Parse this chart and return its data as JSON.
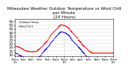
{
  "title": "Milwaukee Weather Outdoor Temperature vs Wind Chill\nper Minute\n(24 Hours)",
  "title_fontsize": 4.2,
  "legend_labels": [
    "Outdoor Temp",
    "Wind Chill"
  ],
  "legend_colors": [
    "red",
    "blue"
  ],
  "background_color": "#ffffff",
  "grid_color": "#cccccc",
  "ymin": 8,
  "ymax": 58,
  "yticks": [
    10,
    15,
    20,
    25,
    30,
    35,
    40,
    45,
    50,
    55
  ],
  "ytick_fontsize": 3.5,
  "xtick_fontsize": 2.8,
  "marker_size": 0.8,
  "temp_x": [
    0,
    5,
    10,
    15,
    20,
    25,
    30,
    35,
    40,
    45,
    50,
    55,
    60,
    65,
    70,
    75,
    80,
    85,
    90,
    95,
    100,
    105,
    110,
    115,
    120,
    125,
    130,
    135,
    140,
    145,
    150,
    155,
    160,
    165,
    170,
    175,
    180,
    185,
    190,
    195,
    200,
    205,
    210,
    215,
    220,
    225,
    230,
    235,
    240,
    245,
    250,
    255,
    260,
    265,
    270,
    275,
    280,
    285,
    290,
    295,
    300,
    305,
    310,
    315,
    320,
    325,
    330,
    335,
    340,
    345,
    350,
    355,
    360,
    365,
    370,
    375,
    380,
    385,
    390,
    395,
    400,
    405,
    410,
    415,
    420,
    425,
    430,
    435,
    440,
    445,
    450,
    455,
    460,
    465,
    470,
    475,
    480,
    485,
    490,
    495,
    500,
    505,
    510,
    515,
    520,
    525,
    530,
    535,
    540,
    545,
    550,
    555,
    560,
    565,
    570,
    575,
    580,
    585,
    590,
    595,
    600,
    605,
    610,
    615,
    620,
    625,
    630,
    635,
    640,
    645,
    650,
    655,
    660,
    665,
    670,
    675,
    680,
    685,
    690,
    695,
    700,
    705,
    710,
    715,
    720,
    725,
    730,
    735,
    740,
    745,
    750,
    755,
    760,
    765,
    770,
    775,
    780,
    785,
    790,
    795,
    800,
    805,
    810,
    815,
    820,
    825,
    830,
    835,
    840,
    845,
    850,
    855,
    860,
    865,
    870,
    875,
    880,
    885,
    890,
    895,
    900,
    905,
    910,
    915,
    920,
    925,
    930,
    935,
    940,
    945,
    950,
    955,
    960,
    965,
    970,
    975,
    980,
    985,
    990,
    995,
    1000,
    1005,
    1010,
    1015,
    1020,
    1025,
    1030,
    1035,
    1040,
    1045,
    1050,
    1055,
    1060,
    1065,
    1070,
    1075,
    1080,
    1085,
    1090,
    1095,
    1100,
    1105,
    1110,
    1115,
    1120,
    1125,
    1130,
    1135,
    1140,
    1145,
    1150,
    1155,
    1160,
    1165,
    1170,
    1175,
    1180,
    1185,
    1190,
    1195,
    1200,
    1205,
    1210,
    1215,
    1220,
    1225,
    1230,
    1235,
    1240,
    1245,
    1250,
    1255,
    1260,
    1265,
    1270,
    1275,
    1280,
    1285,
    1290,
    1295,
    1300,
    1305,
    1310,
    1315,
    1320,
    1325,
    1330,
    1335,
    1340,
    1345,
    1350,
    1355,
    1360,
    1365,
    1370,
    1375,
    1380,
    1385,
    1390,
    1395,
    1400,
    1405,
    1410,
    1415,
    1420,
    1425,
    1430,
    1435
  ],
  "temp_y": [
    22,
    22,
    22,
    21,
    21,
    21,
    21,
    21,
    21,
    21,
    20,
    20,
    20,
    20,
    20,
    19,
    19,
    19,
    19,
    18,
    18,
    18,
    17,
    17,
    17,
    17,
    16,
    16,
    16,
    16,
    15,
    15,
    15,
    15,
    15,
    15,
    15,
    14,
    14,
    14,
    14,
    14,
    14,
    14,
    14,
    14,
    14,
    14,
    13,
    13,
    14,
    14,
    14,
    14,
    14,
    14,
    14,
    14,
    14,
    14,
    14,
    14,
    14,
    15,
    15,
    15,
    16,
    16,
    17,
    17,
    18,
    18,
    18,
    19,
    19,
    20,
    20,
    21,
    21,
    22,
    22,
    23,
    23,
    24,
    25,
    25,
    26,
    26,
    27,
    27,
    28,
    28,
    29,
    29,
    30,
    30,
    31,
    31,
    32,
    32,
    33,
    34,
    35,
    36,
    37,
    37,
    38,
    38,
    39,
    39,
    40,
    40,
    41,
    41,
    42,
    42,
    43,
    43,
    44,
    44,
    45,
    45,
    46,
    46,
    47,
    47,
    48,
    48,
    49,
    49,
    50,
    50,
    51,
    51,
    51,
    51,
    51,
    51,
    51,
    51,
    51,
    50,
    50,
    50,
    50,
    50,
    50,
    49,
    49,
    49,
    48,
    48,
    48,
    47,
    47,
    47,
    46,
    46,
    45,
    44,
    44,
    43,
    43,
    42,
    42,
    41,
    41,
    40,
    39,
    39,
    38,
    38,
    37,
    37,
    36,
    36,
    35,
    35,
    34,
    34,
    33,
    33,
    32,
    32,
    31,
    30,
    30,
    29,
    29,
    28,
    28,
    27,
    27,
    26,
    25,
    25,
    24,
    24,
    23,
    23,
    22,
    22,
    21,
    21,
    21,
    20,
    20,
    19,
    19,
    18,
    18,
    17,
    17,
    16,
    16,
    15,
    15,
    14,
    14,
    14,
    13,
    13,
    13,
    13,
    12,
    12,
    12,
    12,
    12,
    12,
    12,
    12,
    12,
    12,
    12,
    12,
    12,
    12,
    12,
    12,
    12,
    12,
    12,
    12,
    12,
    12,
    12,
    12,
    12,
    12,
    12,
    12,
    12,
    12,
    12,
    12,
    12,
    12,
    12,
    12,
    12,
    12,
    12,
    12,
    12,
    12,
    12,
    12,
    12,
    12,
    12,
    12,
    12,
    12,
    12,
    12,
    12,
    12,
    12,
    12,
    12,
    12,
    12,
    12,
    12,
    12,
    12,
    12
  ],
  "chill_x": [
    0,
    5,
    10,
    15,
    20,
    25,
    30,
    35,
    40,
    45,
    50,
    55,
    60,
    65,
    70,
    75,
    80,
    85,
    90,
    95,
    100,
    105,
    110,
    115,
    120,
    125,
    130,
    135,
    140,
    145,
    150,
    155,
    160,
    165,
    170,
    175,
    180,
    185,
    190,
    195,
    200,
    205,
    210,
    215,
    220,
    225,
    230,
    235,
    240,
    245,
    250,
    255,
    260,
    265,
    270,
    275,
    280,
    285,
    290,
    295,
    300,
    305,
    310,
    315,
    320,
    325,
    330,
    335,
    340,
    345,
    350,
    355,
    360,
    365,
    370,
    375,
    380,
    385,
    390,
    395,
    400,
    405,
    410,
    415,
    420,
    425,
    430,
    435,
    440,
    445,
    450,
    455,
    460,
    465,
    470,
    475,
    480,
    485,
    490,
    495,
    500,
    505,
    510,
    515,
    520,
    525,
    530,
    535,
    540,
    545,
    550,
    555,
    560,
    565,
    570,
    575,
    580,
    585,
    590,
    595,
    600,
    605,
    610,
    615,
    620,
    625,
    630,
    635,
    640,
    645,
    650,
    655,
    660,
    665,
    670,
    675,
    680,
    685,
    690,
    695,
    700,
    705,
    710,
    715,
    720,
    725,
    730,
    735,
    740,
    745,
    750,
    755,
    760,
    765,
    770,
    775,
    780,
    785,
    790,
    795,
    800,
    805,
    810,
    815,
    820,
    825,
    830,
    835,
    840,
    845,
    850,
    855,
    860,
    865,
    870,
    875,
    880,
    885,
    890,
    895,
    900,
    905,
    910,
    915,
    920,
    925,
    930,
    935,
    940,
    945,
    950,
    955,
    960,
    965,
    970,
    975,
    980,
    985,
    990,
    995,
    1000,
    1005,
    1010,
    1015,
    1020,
    1025,
    1030,
    1035,
    1040,
    1045,
    1050,
    1055,
    1060,
    1065,
    1070,
    1075,
    1080,
    1085,
    1090,
    1095,
    1100,
    1105,
    1110,
    1115,
    1120,
    1125,
    1130,
    1135,
    1140,
    1145,
    1150,
    1155,
    1160,
    1165,
    1170,
    1175,
    1180,
    1185,
    1190,
    1195,
    1200,
    1205,
    1210,
    1215,
    1220,
    1225,
    1230,
    1235,
    1240,
    1245,
    1250,
    1255,
    1260,
    1265,
    1270,
    1275,
    1280,
    1285,
    1290,
    1295,
    1300,
    1305,
    1310,
    1315,
    1320,
    1325,
    1330,
    1335,
    1340,
    1345,
    1350,
    1355,
    1360,
    1365,
    1370,
    1375,
    1380,
    1385,
    1390,
    1395,
    1400,
    1405,
    1410,
    1415,
    1420,
    1425,
    1430,
    1435
  ],
  "chill_y": [
    12,
    12,
    12,
    11,
    11,
    11,
    11,
    11,
    11,
    10,
    10,
    10,
    10,
    10,
    9,
    9,
    9,
    9,
    8,
    8,
    8,
    7,
    7,
    7,
    7,
    6,
    6,
    6,
    6,
    5,
    5,
    5,
    5,
    5,
    5,
    5,
    4,
    4,
    4,
    4,
    4,
    4,
    4,
    4,
    4,
    4,
    4,
    4,
    3,
    3,
    4,
    4,
    4,
    4,
    4,
    4,
    4,
    4,
    4,
    4,
    4,
    4,
    4,
    5,
    5,
    5,
    6,
    6,
    7,
    7,
    8,
    8,
    8,
    9,
    9,
    10,
    10,
    11,
    11,
    12,
    12,
    13,
    13,
    14,
    15,
    15,
    16,
    16,
    17,
    17,
    18,
    18,
    19,
    19,
    20,
    20,
    21,
    21,
    22,
    22,
    23,
    24,
    25,
    26,
    27,
    27,
    28,
    28,
    29,
    29,
    30,
    30,
    31,
    31,
    32,
    32,
    33,
    33,
    34,
    34,
    35,
    35,
    36,
    36,
    37,
    37,
    38,
    38,
    39,
    39,
    40,
    40,
    41,
    41,
    41,
    41,
    41,
    41,
    41,
    41,
    41,
    40,
    40,
    40,
    40,
    40,
    40,
    39,
    39,
    39,
    38,
    38,
    38,
    37,
    37,
    37,
    36,
    36,
    35,
    34,
    34,
    33,
    33,
    32,
    32,
    31,
    31,
    30,
    29,
    29,
    28,
    28,
    27,
    27,
    26,
    26,
    25,
    25,
    24,
    24,
    23,
    23,
    22,
    22,
    21,
    20,
    20,
    19,
    19,
    18,
    18,
    17,
    17,
    16,
    15,
    15,
    14,
    14,
    13,
    13,
    12,
    12,
    11,
    11,
    11,
    10,
    10,
    9,
    9,
    8,
    8,
    7,
    7,
    6,
    6,
    5,
    5,
    4,
    4,
    4,
    3,
    3,
    3,
    3,
    2,
    2,
    2,
    2,
    2,
    2,
    2,
    2,
    2,
    2,
    2,
    2,
    2,
    2,
    2,
    2,
    2,
    2,
    2,
    2,
    2,
    2,
    2,
    2,
    2,
    2,
    2,
    2,
    2,
    2,
    2,
    2,
    2,
    2,
    2,
    2,
    2,
    2,
    2,
    2,
    2,
    2,
    2,
    2,
    2,
    2,
    2,
    2,
    2,
    2,
    2,
    2,
    2,
    2,
    2,
    2,
    2,
    2,
    2,
    2,
    2,
    2,
    2,
    2
  ],
  "midnight_x": 720,
  "xtick_positions": [
    0,
    120,
    240,
    360,
    480,
    600,
    720,
    840,
    960,
    1080,
    1200,
    1320,
    1440
  ],
  "xtick_labels": [
    "12am\n1/1",
    "2am",
    "4am",
    "6am",
    "8am",
    "10am",
    "12pm\n1/1",
    "2pm",
    "4pm",
    "6pm",
    "8pm",
    "10pm",
    "12am\n1/2"
  ]
}
